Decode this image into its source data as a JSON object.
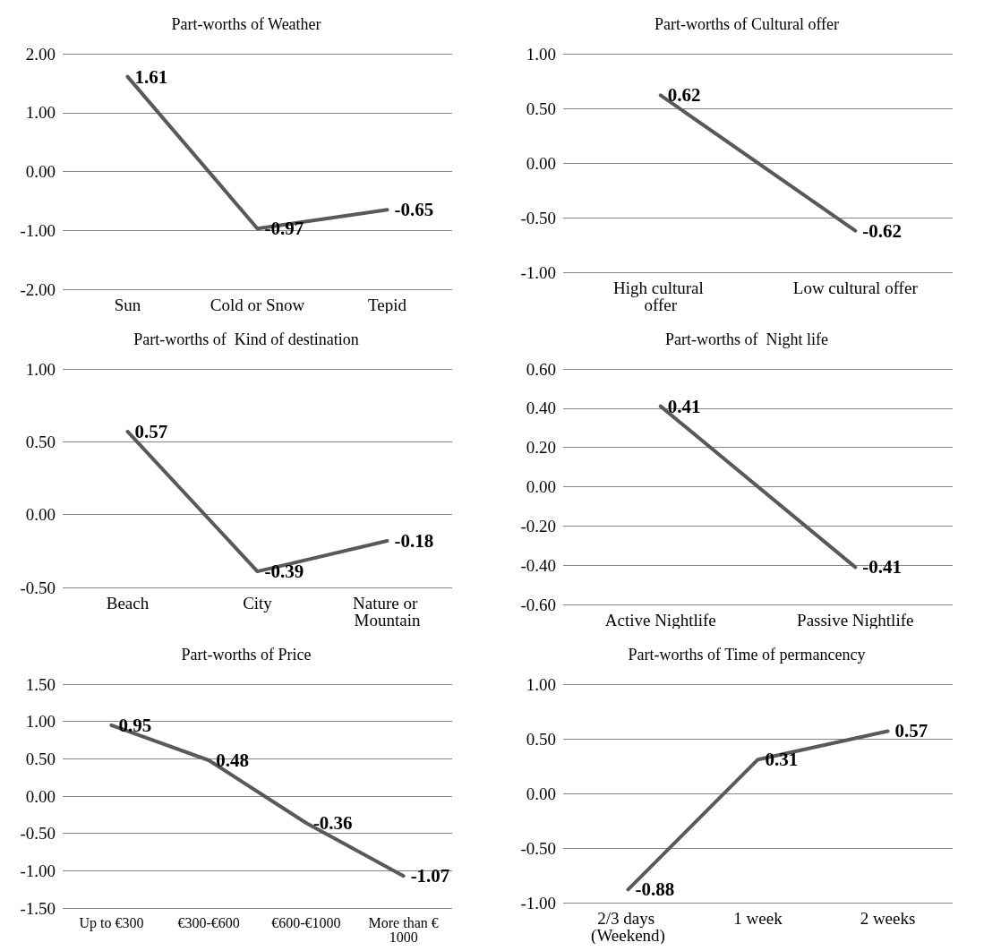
{
  "chart_data": [
    {
      "type": "line",
      "title": "Part-worths of Weather",
      "categories": [
        "Sun",
        "Cold or Snow",
        "Tepid"
      ],
      "series": [
        {
          "color": "#595959",
          "values": [
            1.61,
            -0.97,
            -0.65
          ]
        }
      ],
      "ylim": [
        -2,
        2
      ],
      "yticks": [
        {
          "value": -2,
          "label": "-2.00"
        },
        {
          "value": -1,
          "label": "-1.00"
        },
        {
          "value": 0,
          "label": "0.00"
        },
        {
          "value": 1,
          "label": "1.00"
        },
        {
          "value": 2,
          "label": "2.00"
        }
      ],
      "grid": "y",
      "marker": "none",
      "line_style": "solid",
      "data_labels": true
    },
    {
      "type": "line",
      "title": "Part-worths of Cultural offer",
      "categories": [
        "High cultural offer",
        "Low cultural offer"
      ],
      "series": [
        {
          "color": "#595959",
          "values": [
            0.62,
            -0.62
          ]
        }
      ],
      "ylim": [
        -1,
        1
      ],
      "yticks": [
        {
          "value": -1,
          "label": "-1.00"
        },
        {
          "value": -0.5,
          "label": "-0.50"
        },
        {
          "value": 0,
          "label": "0.00"
        },
        {
          "value": 0.5,
          "label": "0.50"
        },
        {
          "value": 1,
          "label": "1.00"
        }
      ],
      "grid": "y",
      "marker": "none",
      "line_style": "solid",
      "data_labels": true
    },
    {
      "type": "line",
      "title": "Part-worths of  Kind of destination",
      "categories": [
        "Beach",
        "City",
        "Nature or Mountain"
      ],
      "series": [
        {
          "color": "#595959",
          "values": [
            0.57,
            -0.39,
            -0.18
          ]
        }
      ],
      "ylim": [
        -0.5,
        1
      ],
      "yticks": [
        {
          "value": -0.5,
          "label": "-0.50"
        },
        {
          "value": 0,
          "label": "0.00"
        },
        {
          "value": 0.5,
          "label": "0.50"
        },
        {
          "value": 1,
          "label": "1.00"
        }
      ],
      "grid": "y",
      "marker": "none",
      "line_style": "solid",
      "data_labels": true
    },
    {
      "type": "line",
      "title": "Part-worths of  Night life",
      "categories": [
        "Active Nightlife",
        "Passive Nightlife"
      ],
      "series": [
        {
          "color": "#595959",
          "values": [
            0.41,
            -0.41
          ]
        }
      ],
      "ylim": [
        -0.6,
        0.6
      ],
      "yticks": [
        {
          "value": -0.6,
          "label": "-0.60"
        },
        {
          "value": -0.4,
          "label": "-0.40"
        },
        {
          "value": -0.2,
          "label": "-0.20"
        },
        {
          "value": 0,
          "label": "0.00"
        },
        {
          "value": 0.2,
          "label": "0.20"
        },
        {
          "value": 0.4,
          "label": "0.40"
        },
        {
          "value": 0.6,
          "label": "0.60"
        }
      ],
      "grid": "y",
      "marker": "none",
      "line_style": "solid",
      "data_labels": true
    },
    {
      "type": "line",
      "title": "Part-worths of Price",
      "categories": [
        "Up to €300",
        "€300-€600",
        "€600-€1000",
        "More than €1000"
      ],
      "series": [
        {
          "color": "#595959",
          "values": [
            0.95,
            0.48,
            -0.36,
            -1.07
          ]
        }
      ],
      "ylim": [
        -1.5,
        1.5
      ],
      "yticks": [
        {
          "value": -1.5,
          "label": "-1.50"
        },
        {
          "value": -1,
          "label": "-1.00"
        },
        {
          "value": -0.5,
          "label": "-0.50"
        },
        {
          "value": 0,
          "label": "0.00"
        },
        {
          "value": 0.5,
          "label": "0.50"
        },
        {
          "value": 1,
          "label": "1.00"
        },
        {
          "value": 1.5,
          "label": "1.50"
        }
      ],
      "grid": "y",
      "marker": "none",
      "line_style": "solid",
      "data_labels": true
    },
    {
      "type": "line",
      "title": "Part-worths of Time of permancency",
      "categories": [
        "2/3 days (Weekend)",
        "1 week",
        "2 weeks"
      ],
      "series": [
        {
          "color": "#595959",
          "values": [
            -0.88,
            0.31,
            0.57
          ]
        }
      ],
      "ylim": [
        -1,
        1
      ],
      "yticks": [
        {
          "value": -1,
          "label": "-1.00"
        },
        {
          "value": -0.5,
          "label": "-0.50"
        },
        {
          "value": 0,
          "label": "0.00"
        },
        {
          "value": 0.5,
          "label": "0.50"
        },
        {
          "value": 1,
          "label": "1.00"
        }
      ],
      "grid": "y",
      "marker": "none",
      "line_style": "solid",
      "data_labels": true
    }
  ]
}
